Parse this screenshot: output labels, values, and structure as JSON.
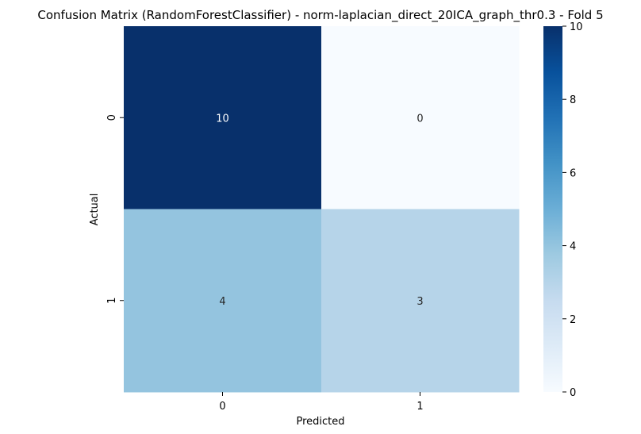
{
  "chart_data": {
    "type": "heatmap",
    "title": "Confusion Matrix (RandomForestClassifier) - norm-laplacian_direct_20ICA_graph_thr0.3 - Fold 5",
    "xlabel": "Predicted",
    "ylabel": "Actual",
    "x_categories": [
      "0",
      "1"
    ],
    "y_categories": [
      "0",
      "1"
    ],
    "values": [
      [
        10,
        0
      ],
      [
        4,
        3
      ]
    ],
    "colormap": "Blues",
    "colorbar": {
      "min": 0,
      "max": 10,
      "ticks": [
        0,
        2,
        4,
        6,
        8,
        10
      ]
    },
    "annotations": true,
    "grid": false
  }
}
